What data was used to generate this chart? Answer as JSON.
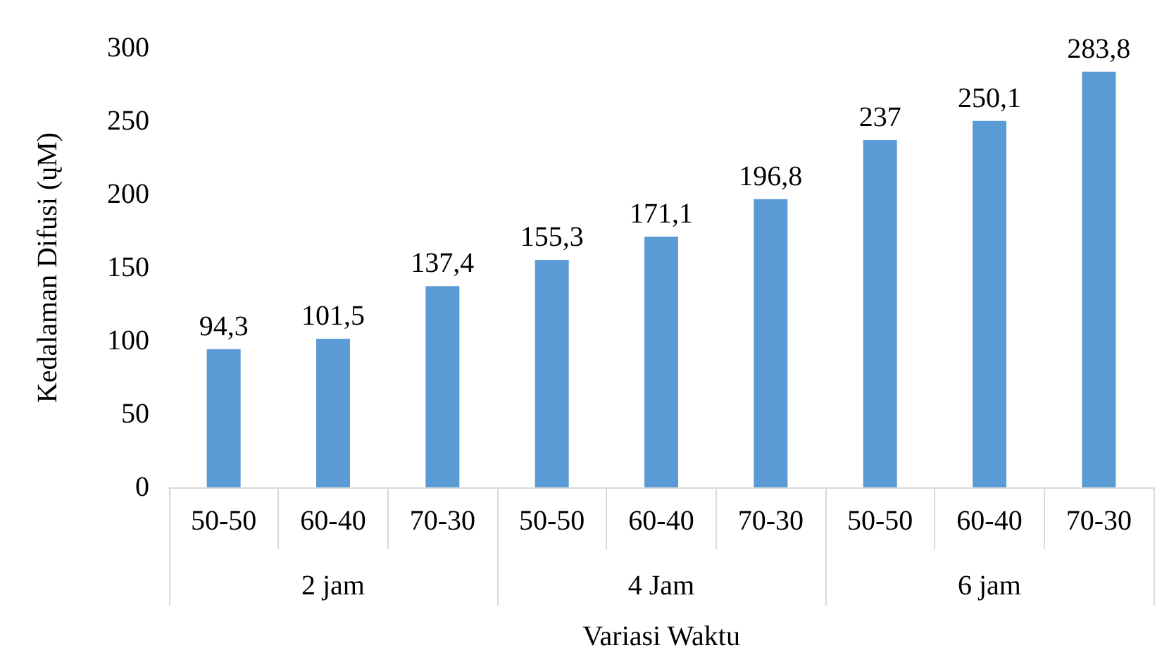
{
  "chart_data": {
    "type": "bar",
    "xlabel": "Variasi Waktu",
    "ylabel": "Kedalaman Difusi (ųM)",
    "categories": [
      "50-50",
      "60-40",
      "70-30",
      "50-50",
      "60-40",
      "70-30",
      "50-50",
      "60-40",
      "70-30"
    ],
    "values": [
      94.3,
      101.5,
      137.4,
      155.3,
      171.1,
      196.8,
      237,
      250.1,
      283.8
    ],
    "value_labels": [
      "94,3",
      "101,5",
      "137,4",
      "155,3",
      "171,1",
      "196,8",
      "237",
      "250,1",
      "283,8"
    ],
    "color": "#5b9bd5",
    "annotations": [
      "2 jam",
      "4 Jam",
      "6 jam"
    ],
    "ylim": [
      0,
      300
    ],
    "yticks": [
      0,
      50,
      100,
      150,
      200,
      250,
      300
    ],
    "grid": false
  }
}
